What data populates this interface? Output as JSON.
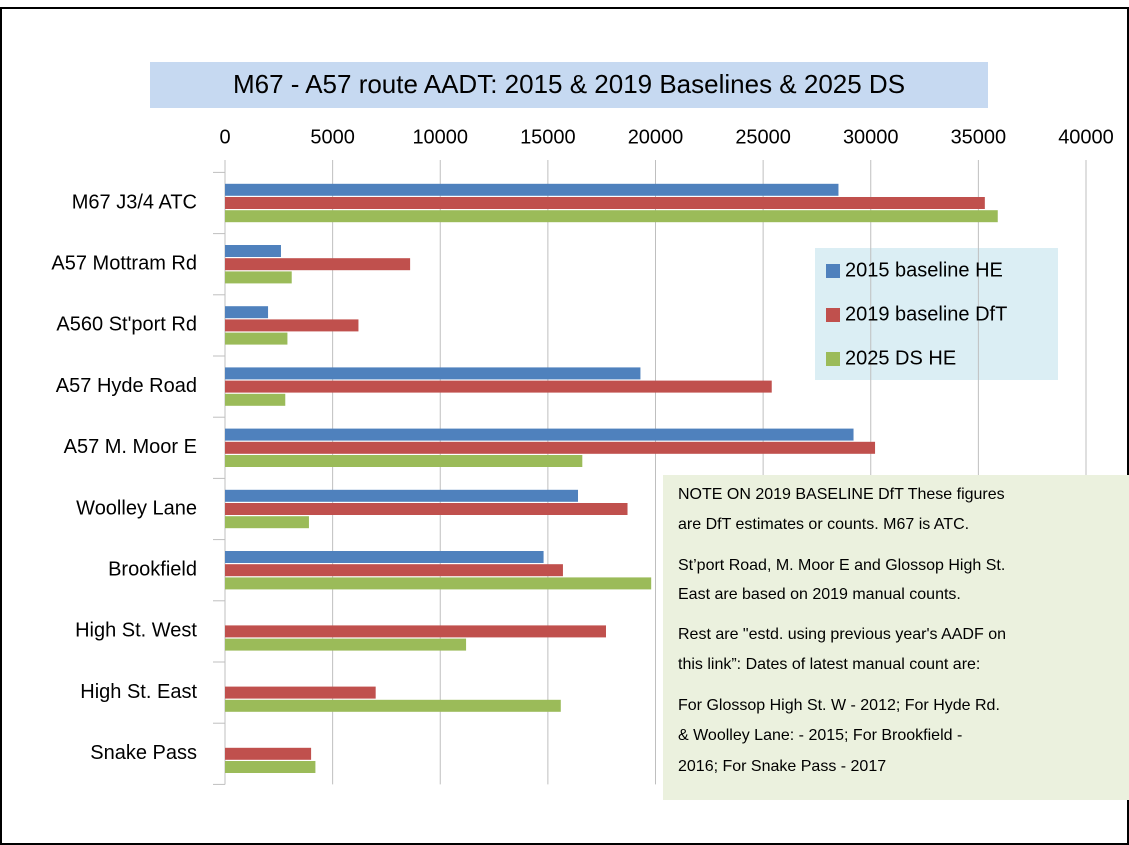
{
  "chart_data": {
    "type": "bar",
    "orientation": "horizontal",
    "title": "M67 - A57 route  AADT:  2015 & 2019 Baselines  & 2025 DS",
    "categories": [
      "M67 J3/4  ATC",
      "A57 Mottram Rd",
      "A560 St'port Rd",
      "A57 Hyde Road",
      "A57 M. Moor E",
      "Woolley Lane",
      "Brookfield",
      "High St. West",
      "High St. East",
      "Snake Pass"
    ],
    "series": [
      {
        "name": "2015 baseline HE",
        "color": "#4f81bd",
        "values": [
          28500,
          2600,
          2000,
          19300,
          29200,
          16400,
          14800,
          null,
          null,
          null
        ]
      },
      {
        "name": "2019 baseline DfT",
        "color": "#c0504d",
        "values": [
          35300,
          8600,
          6200,
          25400,
          30200,
          18700,
          15700,
          17700,
          7000,
          4000
        ]
      },
      {
        "name": "2025 DS HE",
        "color": "#9bbb59",
        "values": [
          35900,
          3100,
          2900,
          2800,
          16600,
          3900,
          19800,
          11200,
          15600,
          4200
        ]
      }
    ],
    "xlim": [
      0,
      40000
    ],
    "xticks": [
      0,
      5000,
      10000,
      15000,
      20000,
      25000,
      30000,
      35000,
      40000
    ],
    "grid": true,
    "legend_position": "right",
    "note": [
      "NOTE ON 2019 BASELINE DfT  These figures",
      "are  DfT estimates or counts.     M67 is ATC.",
      "St’port Road, M. Moor E and  Glossop High St.",
      "East are based on 2019 manual counts.",
      "Rest are \"estd. using previous year's AADF on",
      "this link”: Dates of latest manual count are:",
      "For Glossop High St. W - 2012;    For Hyde Rd.",
      "& Woolley Lane: - 2015;     For Brookfield -",
      "2016; For Snake Pass - 2017"
    ]
  }
}
